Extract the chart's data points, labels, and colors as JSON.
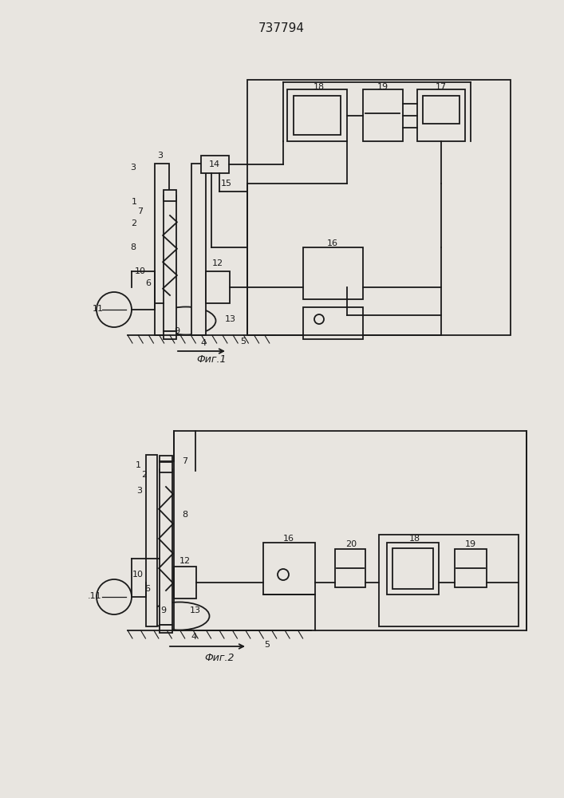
{
  "title": "737794",
  "fig1_caption": "Фиг.1",
  "fig2_caption": "Фиг.2",
  "bg_color": "#e8e5e0",
  "line_color": "#1a1a1a",
  "line_width": 1.3
}
